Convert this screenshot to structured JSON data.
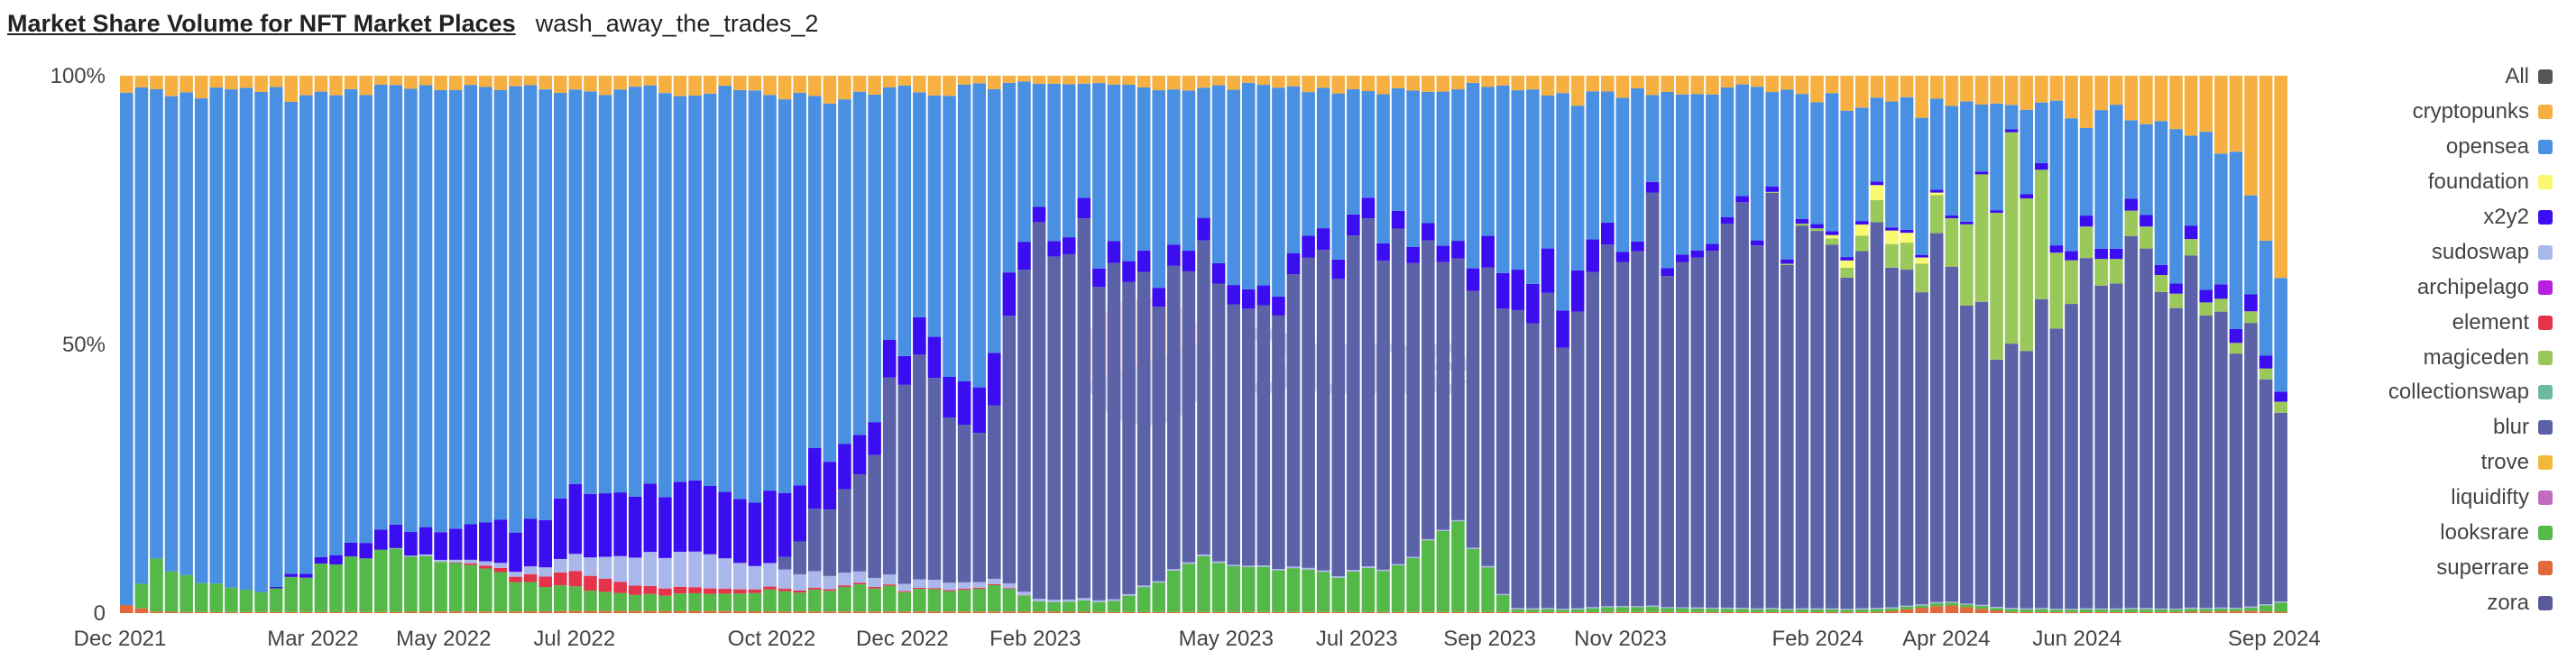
{
  "header": {
    "title": "Market Share Volume for NFT Market Places",
    "subtitle": "wash_away_the_trades_2"
  },
  "watermark": {
    "text": "Dune"
  },
  "chart_data": {
    "type": "bar",
    "stacked": true,
    "normalized": true,
    "grid": false,
    "legend_position": "right",
    "title": "Market Share Volume for NFT Market Places",
    "xlabel": "",
    "ylabel": "",
    "ylim": [
      0,
      1
    ],
    "y_ticks": [
      {
        "value": 0,
        "label": "0"
      },
      {
        "value": 0.5,
        "label": "50%"
      },
      {
        "value": 1,
        "label": "100%"
      }
    ],
    "x_ticks": [
      {
        "date": "2021-12-01",
        "label": "Dec 2021"
      },
      {
        "date": "2022-03-01",
        "label": "Mar 2022"
      },
      {
        "date": "2022-05-01",
        "label": "May 2022"
      },
      {
        "date": "2022-07-01",
        "label": "Jul 2022"
      },
      {
        "date": "2022-10-01",
        "label": "Oct 2022"
      },
      {
        "date": "2022-12-01",
        "label": "Dec 2022"
      },
      {
        "date": "2023-02-01",
        "label": "Feb 2023"
      },
      {
        "date": "2023-05-01",
        "label": "May 2023"
      },
      {
        "date": "2023-07-01",
        "label": "Jul 2023"
      },
      {
        "date": "2023-09-01",
        "label": "Sep 2023"
      },
      {
        "date": "2023-11-01",
        "label": "Nov 2023"
      },
      {
        "date": "2024-02-01",
        "label": "Feb 2024"
      },
      {
        "date": "2024-04-01",
        "label": "Apr 2024"
      },
      {
        "date": "2024-06-01",
        "label": "Jun 2024"
      },
      {
        "date": "2024-09-01",
        "label": "Sep 2024"
      }
    ],
    "x_start": "2021-12-01",
    "x_end": "2024-09-08",
    "interval": "week",
    "legend": [
      {
        "name": "All",
        "color": "#555555"
      },
      {
        "name": "cryptopunks",
        "color": "#f5b041"
      },
      {
        "name": "opensea",
        "color": "#4a90e2"
      },
      {
        "name": "foundation",
        "color": "#f9f871"
      },
      {
        "name": "x2y2",
        "color": "#3a0ef0"
      },
      {
        "name": "sudoswap",
        "color": "#aab7ea"
      },
      {
        "name": "archipelago",
        "color": "#b620e0"
      },
      {
        "name": "element",
        "color": "#e5334b"
      },
      {
        "name": "magiceden",
        "color": "#9bc85a"
      },
      {
        "name": "collectionswap",
        "color": "#6cb8a0"
      },
      {
        "name": "blur",
        "color": "#5b62a8"
      },
      {
        "name": "trove",
        "color": "#f2b83a"
      },
      {
        "name": "liquidifty",
        "color": "#c06cc0"
      },
      {
        "name": "looksrare",
        "color": "#54b948"
      },
      {
        "name": "superrare",
        "color": "#e0683a"
      },
      {
        "name": "zora",
        "color": "#5a5a9a"
      }
    ],
    "stack_order": [
      "superrare",
      "looksrare",
      "element",
      "sudoswap",
      "blur",
      "magiceden",
      "foundation",
      "x2y2",
      "opensea",
      "cryptopunks"
    ],
    "keyframes": [
      {
        "date": "2021-12-01",
        "looksrare": 0.0,
        "superrare": 0.015,
        "element": 0,
        "sudoswap": 0,
        "blur": 0,
        "magiceden": 0,
        "foundation": 0,
        "x2y2": 0,
        "cryptopunks": 0.03
      },
      {
        "date": "2021-12-15",
        "looksrare": 0.1,
        "superrare": 0.003,
        "element": 0,
        "sudoswap": 0,
        "blur": 0,
        "magiceden": 0,
        "foundation": 0,
        "x2y2": 0,
        "cryptopunks": 0.025
      },
      {
        "date": "2022-01-01",
        "looksrare": 0.06,
        "superrare": 0.002,
        "element": 0,
        "sudoswap": 0,
        "blur": 0,
        "magiceden": 0,
        "foundation": 0,
        "x2y2": 0,
        "cryptopunks": 0.035
      },
      {
        "date": "2022-02-01",
        "looksrare": 0.035,
        "superrare": 0.002,
        "element": 0,
        "sudoswap": 0,
        "blur": 0,
        "magiceden": 0,
        "foundation": 0,
        "x2y2": 0,
        "cryptopunks": 0.03
      },
      {
        "date": "2022-03-01",
        "looksrare": 0.08,
        "superrare": 0.002,
        "element": 0,
        "sudoswap": 0,
        "blur": 0,
        "magiceden": 0,
        "foundation": 0,
        "x2y2": 0.01,
        "cryptopunks": 0.04
      },
      {
        "date": "2022-04-01",
        "looksrare": 0.12,
        "superrare": 0.002,
        "element": 0,
        "sudoswap": 0,
        "blur": 0,
        "magiceden": 0,
        "foundation": 0,
        "x2y2": 0.04,
        "cryptopunks": 0.02
      },
      {
        "date": "2022-05-01",
        "looksrare": 0.1,
        "superrare": 0.003,
        "element": 0,
        "sudoswap": 0.005,
        "blur": 0,
        "magiceden": 0,
        "foundation": 0,
        "x2y2": 0.06,
        "cryptopunks": 0.02
      },
      {
        "date": "2022-06-01",
        "looksrare": 0.06,
        "superrare": 0.003,
        "element": 0.01,
        "sudoswap": 0.01,
        "blur": 0,
        "magiceden": 0,
        "foundation": 0,
        "x2y2": 0.08,
        "cryptopunks": 0.025
      },
      {
        "date": "2022-07-01",
        "looksrare": 0.04,
        "superrare": 0.004,
        "element": 0.03,
        "sudoswap": 0.03,
        "blur": 0,
        "magiceden": 0,
        "foundation": 0,
        "x2y2": 0.12,
        "cryptopunks": 0.03
      },
      {
        "date": "2022-08-01",
        "looksrare": 0.03,
        "superrare": 0.004,
        "element": 0.015,
        "sudoswap": 0.06,
        "blur": 0,
        "magiceden": 0,
        "foundation": 0,
        "x2y2": 0.12,
        "cryptopunks": 0.025
      },
      {
        "date": "2022-09-01",
        "looksrare": 0.03,
        "superrare": 0.004,
        "element": 0.01,
        "sudoswap": 0.06,
        "blur": 0,
        "magiceden": 0,
        "foundation": 0,
        "x2y2": 0.12,
        "cryptopunks": 0.03
      },
      {
        "date": "2022-10-01",
        "looksrare": 0.04,
        "superrare": 0.003,
        "element": 0.005,
        "sudoswap": 0.04,
        "blur": 0,
        "magiceden": 0,
        "foundation": 0,
        "x2y2": 0.13,
        "cryptopunks": 0.03
      },
      {
        "date": "2022-10-20",
        "looksrare": 0.04,
        "superrare": 0.003,
        "element": 0.003,
        "sudoswap": 0.03,
        "blur": 0.12,
        "magiceden": 0,
        "foundation": 0,
        "x2y2": 0.11,
        "cryptopunks": 0.04
      },
      {
        "date": "2022-11-10",
        "looksrare": 0.05,
        "superrare": 0.003,
        "element": 0.003,
        "sudoswap": 0.02,
        "blur": 0.18,
        "magiceden": 0,
        "foundation": 0,
        "x2y2": 0.07,
        "cryptopunks": 0.03
      },
      {
        "date": "2022-12-01",
        "looksrare": 0.04,
        "superrare": 0.003,
        "element": 0.002,
        "sudoswap": 0.015,
        "blur": 0.43,
        "magiceden": 0,
        "foundation": 0,
        "x2y2": 0.06,
        "cryptopunks": 0.025
      },
      {
        "date": "2022-12-20",
        "looksrare": 0.04,
        "superrare": 0.003,
        "element": 0.002,
        "sudoswap": 0.015,
        "blur": 0.33,
        "magiceden": 0,
        "foundation": 0,
        "x2y2": 0.08,
        "cryptopunks": 0.03
      },
      {
        "date": "2023-01-10",
        "looksrare": 0.05,
        "superrare": 0.003,
        "element": 0.002,
        "sudoswap": 0.01,
        "blur": 0.3,
        "magiceden": 0,
        "foundation": 0,
        "x2y2": 0.1,
        "cryptopunks": 0.02
      },
      {
        "date": "2023-02-01",
        "looksrare": 0.02,
        "superrare": 0.003,
        "element": 0,
        "sudoswap": 0.005,
        "blur": 0.74,
        "magiceden": 0,
        "foundation": 0,
        "x2y2": 0.03,
        "cryptopunks": 0.015
      },
      {
        "date": "2023-03-10",
        "looksrare": 0.02,
        "superrare": 0.002,
        "element": 0,
        "sudoswap": 0.003,
        "blur": 0.6,
        "magiceden": 0,
        "foundation": 0,
        "x2y2": 0.04,
        "cryptopunks": 0.025
      },
      {
        "date": "2023-04-15",
        "looksrare": 0.1,
        "superrare": 0.002,
        "element": 0,
        "sudoswap": 0.003,
        "blur": 0.56,
        "magiceden": 0,
        "foundation": 0,
        "x2y2": 0.04,
        "cryptopunks": 0.02
      },
      {
        "date": "2023-05-20",
        "looksrare": 0.09,
        "superrare": 0.002,
        "element": 0,
        "sudoswap": 0.003,
        "blur": 0.52,
        "magiceden": 0,
        "foundation": 0,
        "x2y2": 0.04,
        "cryptopunks": 0.02
      },
      {
        "date": "2023-06-20",
        "looksrare": 0.07,
        "superrare": 0.002,
        "element": 0,
        "sudoswap": 0.003,
        "blur": 0.61,
        "magiceden": 0,
        "foundation": 0,
        "x2y2": 0.04,
        "cryptopunks": 0.025
      },
      {
        "date": "2023-07-20",
        "looksrare": 0.08,
        "superrare": 0.002,
        "element": 0,
        "sudoswap": 0.002,
        "blur": 0.57,
        "magiceden": 0,
        "foundation": 0,
        "x2y2": 0.03,
        "cryptopunks": 0.025
      },
      {
        "date": "2023-08-15",
        "looksrare": 0.17,
        "superrare": 0.002,
        "element": 0,
        "sudoswap": 0.002,
        "blur": 0.47,
        "magiceden": 0,
        "foundation": 0,
        "x2y2": 0.03,
        "cryptopunks": 0.02
      },
      {
        "date": "2023-09-10",
        "looksrare": 0.005,
        "superrare": 0.002,
        "element": 0,
        "sudoswap": 0.002,
        "blur": 0.52,
        "magiceden": 0,
        "foundation": 0,
        "x2y2": 0.07,
        "cryptopunks": 0.02
      },
      {
        "date": "2023-10-10",
        "looksrare": 0.005,
        "superrare": 0.002,
        "element": 0,
        "sudoswap": 0.002,
        "blur": 0.55,
        "magiceden": 0,
        "foundation": 0,
        "x2y2": 0.08,
        "cryptopunks": 0.04
      },
      {
        "date": "2023-11-01",
        "looksrare": 0.01,
        "superrare": 0.002,
        "element": 0,
        "sudoswap": 0.002,
        "blur": 0.69,
        "magiceden": 0,
        "foundation": 0,
        "x2y2": 0.02,
        "cryptopunks": 0.04
      },
      {
        "date": "2024-01-01",
        "looksrare": 0.005,
        "superrare": 0.002,
        "element": 0,
        "sudoswap": 0.002,
        "blur": 0.7,
        "magiceden": 0,
        "foundation": 0,
        "x2y2": 0.01,
        "cryptopunks": 0.02
      },
      {
        "date": "2024-02-01",
        "looksrare": 0.005,
        "superrare": 0.002,
        "element": 0,
        "sudoswap": 0.002,
        "blur": 0.72,
        "magiceden": 0.005,
        "foundation": 0,
        "x2y2": 0.008,
        "cryptopunks": 0.05
      },
      {
        "date": "2024-03-01",
        "looksrare": 0.005,
        "superrare": 0.002,
        "element": 0,
        "sudoswap": 0.002,
        "blur": 0.65,
        "magiceden": 0.04,
        "foundation": 0.03,
        "x2y2": 0.006,
        "cryptopunks": 0.06
      },
      {
        "date": "2024-04-01",
        "looksrare": 0.005,
        "superrare": 0.015,
        "element": 0,
        "sudoswap": 0.002,
        "blur": 0.63,
        "magiceden": 0.07,
        "foundation": 0,
        "x2y2": 0.005,
        "cryptopunks": 0.07
      },
      {
        "date": "2024-05-01",
        "looksrare": 0.005,
        "superrare": 0.002,
        "element": 0,
        "sudoswap": 0.002,
        "blur": 0.45,
        "magiceden": 0.36,
        "foundation": 0,
        "x2y2": 0.005,
        "cryptopunks": 0.04
      },
      {
        "date": "2024-06-01",
        "looksrare": 0.005,
        "superrare": 0.002,
        "element": 0,
        "sudoswap": 0.002,
        "blur": 0.64,
        "magiceden": 0.06,
        "foundation": 0,
        "x2y2": 0.02,
        "cryptopunks": 0.07
      },
      {
        "date": "2024-07-15",
        "looksrare": 0.005,
        "superrare": 0.002,
        "element": 0,
        "sudoswap": 0.002,
        "blur": 0.62,
        "magiceden": 0.03,
        "foundation": 0,
        "x2y2": 0.02,
        "cryptopunks": 0.08
      },
      {
        "date": "2024-08-20",
        "looksrare": 0.005,
        "superrare": 0.004,
        "element": 0,
        "sudoswap": 0.002,
        "blur": 0.5,
        "magiceden": 0.02,
        "foundation": 0,
        "x2y2": 0.03,
        "cryptopunks": 0.17
      },
      {
        "date": "2024-09-08",
        "looksrare": 0.02,
        "superrare": 0.002,
        "element": 0,
        "sudoswap": 0.002,
        "blur": 0.3,
        "magiceden": 0.02,
        "foundation": 0,
        "x2y2": 0.015,
        "cryptopunks": 0.48
      }
    ]
  }
}
